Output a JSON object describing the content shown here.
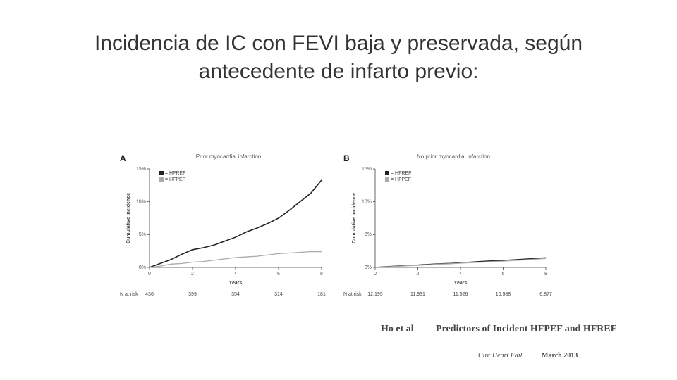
{
  "slide": {
    "title_lines": [
      "Incidencia de IC con FEVI baja y preservada, según",
      "antecedente de infarto previo:"
    ]
  },
  "citation": {
    "authors": "Ho et al",
    "article": "Predictors of Incident HFPEF and HFREF",
    "journal": "Circ Heart Fail",
    "date": "March 2013"
  },
  "chart_data": [
    {
      "type": "line",
      "panel_label": "A",
      "title": "Prior myocardial infarction",
      "x_label": "Years",
      "y_label": "Cumulative incidence",
      "x": [
        0,
        0.5,
        1,
        1.5,
        2,
        2.5,
        3,
        3.5,
        4,
        4.5,
        5,
        5.5,
        6,
        6.5,
        7,
        7.5,
        8
      ],
      "series": [
        {
          "name": "= HFREF",
          "color": "#222222",
          "values": [
            0,
            0.6,
            1.2,
            2.0,
            2.7,
            3.0,
            3.4,
            4.0,
            4.6,
            5.4,
            6.0,
            6.7,
            7.5,
            8.7,
            10.0,
            11.3,
            13.3
          ]
        },
        {
          "name": "= HFPEF",
          "color": "#aaaaaa",
          "values": [
            0,
            0.2,
            0.5,
            0.6,
            0.8,
            0.9,
            1.1,
            1.3,
            1.5,
            1.6,
            1.7,
            1.9,
            2.1,
            2.2,
            2.3,
            2.4,
            2.4
          ]
        }
      ],
      "xlim": [
        0,
        8
      ],
      "xticks": [
        0,
        2,
        4,
        6,
        8
      ],
      "ylim": [
        0,
        15
      ],
      "yticks": [
        {
          "value": 0,
          "label": "0%"
        },
        {
          "value": 5,
          "label": "5%"
        },
        {
          "value": 10,
          "label": "10%"
        },
        {
          "value": 15,
          "label": "15%"
        }
      ],
      "legend": "upper-left",
      "n_at_risk": {
        "label": "N at risk",
        "x": [
          0,
          2,
          4,
          6,
          8
        ],
        "values": [
          436,
          399,
          354,
          314,
          181
        ]
      }
    },
    {
      "type": "line",
      "panel_label": "B",
      "title": "No prior myocardial infarction",
      "x_label": "Years",
      "y_label": "Cumulative incidence",
      "x": [
        0,
        0.5,
        1,
        1.5,
        2,
        2.5,
        3,
        3.5,
        4,
        4.5,
        5,
        5.5,
        6,
        6.5,
        7,
        7.5,
        8
      ],
      "series": [
        {
          "name": "= HFREF",
          "color": "#222222",
          "values": [
            0,
            0.1,
            0.2,
            0.3,
            0.35,
            0.45,
            0.55,
            0.6,
            0.7,
            0.8,
            0.9,
            1.0,
            1.05,
            1.15,
            1.25,
            1.35,
            1.45
          ]
        },
        {
          "name": "= HFPEF",
          "color": "#aaaaaa",
          "values": [
            0,
            0.08,
            0.17,
            0.25,
            0.32,
            0.4,
            0.5,
            0.55,
            0.65,
            0.72,
            0.8,
            0.9,
            0.95,
            1.05,
            1.15,
            1.25,
            1.35
          ]
        }
      ],
      "xlim": [
        0,
        8
      ],
      "xticks": [
        0,
        2,
        4,
        6,
        8
      ],
      "ylim": [
        0,
        15
      ],
      "yticks": [
        {
          "value": 0,
          "label": "0%"
        },
        {
          "value": 5,
          "label": "5%"
        },
        {
          "value": 10,
          "label": "10%"
        },
        {
          "value": 15,
          "label": "15%"
        }
      ],
      "legend": "upper-left",
      "n_at_risk": {
        "label": "N at risk",
        "x": [
          0,
          2,
          4,
          6,
          8
        ],
        "values": [
          12195,
          11931,
          11526,
          10988,
          6877
        ],
        "value_labels": [
          "12,195",
          "11,931",
          "11,526",
          "10,988",
          "6,877"
        ]
      }
    }
  ]
}
